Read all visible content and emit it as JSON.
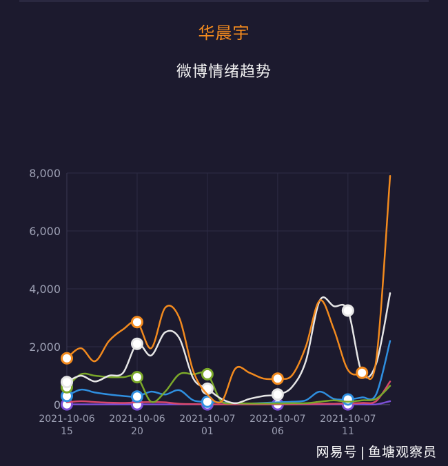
{
  "header": {
    "title": "华晨宇",
    "subtitle": "微博情绪趋势"
  },
  "watermark": {
    "brand": "网易号",
    "separator": "|",
    "author": "鱼塘观察员"
  },
  "chart_data": {
    "type": "line",
    "title": "华晨宇",
    "subtitle": "微博情绪趋势",
    "xlabel": "",
    "ylabel": "",
    "ylim": [
      0,
      8000
    ],
    "yticks": [
      0,
      2000,
      4000,
      6000,
      8000
    ],
    "ytick_labels": [
      "0",
      "2,000",
      "4,000",
      "6,000",
      "8,000"
    ],
    "x_range": [
      0,
      23
    ],
    "xticks": [
      {
        "x": 0,
        "line1": "2021-10-06",
        "line2": "15"
      },
      {
        "x": 5,
        "line1": "2021-10-06",
        "line2": "20"
      },
      {
        "x": 10,
        "line1": "2021-10-07",
        "line2": "01"
      },
      {
        "x": 15,
        "line1": "2021-10-07",
        "line2": "06"
      },
      {
        "x": 20,
        "line1": "2021-10-07",
        "line2": "11"
      }
    ],
    "grid": true,
    "marker_fill": "#ffffff",
    "series": [
      {
        "color": "#7b4fd6",
        "values": [
          10,
          10,
          10,
          10,
          10,
          10,
          10,
          10,
          10,
          10,
          10,
          10,
          10,
          10,
          10,
          10,
          10,
          10,
          10,
          10,
          10,
          10,
          10,
          120
        ],
        "markers": [
          0,
          5,
          10,
          15,
          20
        ]
      },
      {
        "color": "#d6486a",
        "values": [
          80,
          120,
          90,
          70,
          60,
          80,
          90,
          80,
          30,
          20,
          10,
          10,
          10,
          10,
          10,
          10,
          10,
          20,
          30,
          30,
          40,
          60,
          120,
          800
        ],
        "markers": []
      },
      {
        "color": "#2f8fe0",
        "values": [
          300,
          520,
          420,
          350,
          300,
          280,
          450,
          350,
          500,
          150,
          100,
          80,
          50,
          40,
          60,
          80,
          100,
          150,
          450,
          200,
          180,
          250,
          350,
          2200
        ],
        "markers": [
          0,
          5,
          10,
          20
        ]
      },
      {
        "color": "#7ba82a",
        "values": [
          600,
          1050,
          1000,
          950,
          950,
          950,
          100,
          450,
          1050,
          1050,
          1050,
          100,
          50,
          40,
          40,
          40,
          50,
          50,
          100,
          150,
          100,
          150,
          200,
          650
        ],
        "markers": [
          0,
          5,
          10
        ]
      },
      {
        "color": "#e6e6e6",
        "values": [
          780,
          1000,
          800,
          1000,
          1100,
          2100,
          1700,
          2500,
          2300,
          900,
          550,
          200,
          50,
          200,
          300,
          350,
          600,
          1500,
          3600,
          3400,
          3250,
          1100,
          1400,
          3850
        ],
        "markers": [
          0,
          5,
          10,
          15,
          20
        ]
      },
      {
        "color": "#f28a1e",
        "values": [
          1600,
          1950,
          1500,
          2200,
          2600,
          2850,
          1950,
          3350,
          3000,
          1150,
          350,
          100,
          1250,
          1100,
          900,
          900,
          1000,
          2000,
          3600,
          2600,
          1200,
          1100,
          1500,
          7900
        ],
        "markers": [
          0,
          5,
          15,
          21
        ]
      }
    ]
  }
}
